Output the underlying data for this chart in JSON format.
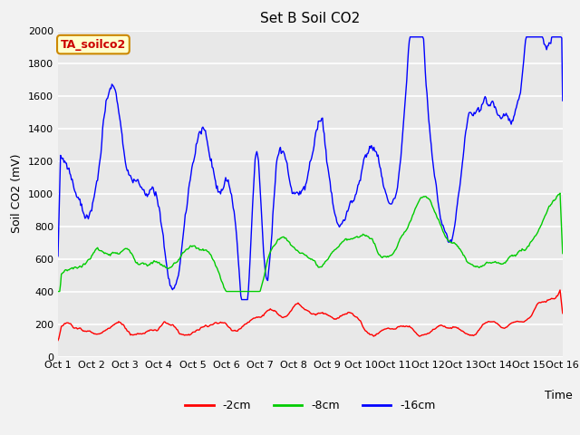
{
  "title": "Set B Soil CO2",
  "ylabel": "Soil CO2 (mV)",
  "xlabel": "Time",
  "xlabels": [
    "Oct 1",
    "Oct 2",
    "Oct 3",
    "Oct 4",
    "Oct 5",
    "Oct 6",
    "Oct 7",
    "Oct 8",
    "Oct 9",
    "Oct 10",
    "Oct 11",
    "Oct 12",
    "Oct 13",
    "Oct 14",
    "Oct 15",
    "Oct 16"
  ],
  "ylim": [
    0,
    2000
  ],
  "yticks": [
    0,
    200,
    400,
    600,
    800,
    1000,
    1200,
    1400,
    1600,
    1800,
    2000
  ],
  "legend_labels": [
    "-2cm",
    "-8cm",
    "-16cm"
  ],
  "line_colors": [
    "#ff0000",
    "#00cc00",
    "#0000ff"
  ],
  "plot_bg": "#e8e8e8",
  "fig_bg": "#f2f2f2",
  "annotation_text": "TA_soilco2",
  "annotation_bg": "#ffffcc",
  "annotation_border": "#cc8800",
  "grid_color": "#ffffff"
}
